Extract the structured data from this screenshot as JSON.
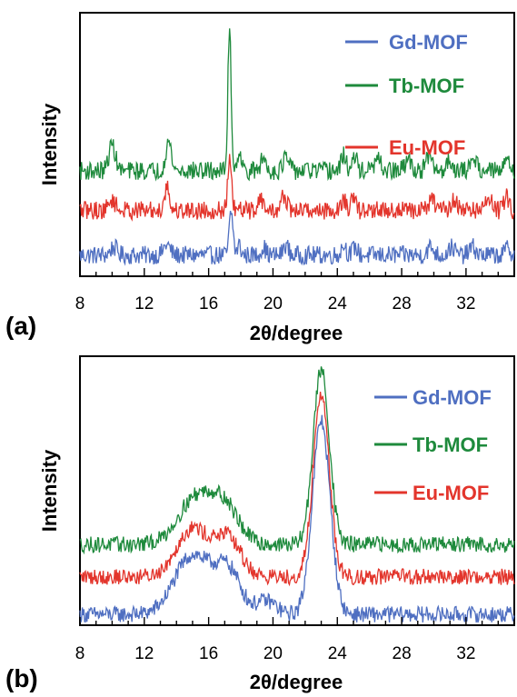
{
  "chart_data": [
    {
      "panel_label": "(a)",
      "type": "line",
      "xlabel": "2θ/degree",
      "ylabel": "Intensity",
      "xlim": [
        8,
        35
      ],
      "x_ticks": [
        8,
        12,
        16,
        20,
        24,
        28,
        32
      ],
      "legend_position": "top-right",
      "series": [
        {
          "name": "Gd-MOF",
          "color": "#4f6fc1",
          "base": 0.08,
          "noise": 0.035,
          "peaks": [
            [
              10.1,
              0.03,
              0.2
            ],
            [
              13.4,
              0.04,
              0.2
            ],
            [
              17.4,
              0.16,
              0.12
            ],
            [
              17.9,
              0.04,
              0.1
            ],
            [
              19.4,
              0.03,
              0.15
            ],
            [
              20.8,
              0.04,
              0.15
            ],
            [
              24.4,
              0.04,
              0.15
            ],
            [
              25.1,
              0.03,
              0.15
            ],
            [
              29.8,
              0.03,
              0.2
            ],
            [
              31.1,
              0.03,
              0.2
            ],
            [
              32.4,
              0.03,
              0.2
            ],
            [
              34.6,
              0.03,
              0.15
            ]
          ]
        },
        {
          "name": "Tb-MOF",
          "color": "#1e8a3c",
          "base": 0.4,
          "noise": 0.035,
          "peaks": [
            [
              10.0,
              0.1,
              0.2
            ],
            [
              13.5,
              0.11,
              0.18
            ],
            [
              17.3,
              0.55,
              0.1
            ],
            [
              17.9,
              0.08,
              0.12
            ],
            [
              19.4,
              0.05,
              0.15
            ],
            [
              20.8,
              0.05,
              0.18
            ],
            [
              24.4,
              0.06,
              0.15
            ],
            [
              25.1,
              0.05,
              0.15
            ],
            [
              26.5,
              0.04,
              0.2
            ],
            [
              28.4,
              0.04,
              0.2
            ],
            [
              29.7,
              0.05,
              0.2
            ],
            [
              31.0,
              0.04,
              0.2
            ],
            [
              32.5,
              0.05,
              0.2
            ],
            [
              34.6,
              0.06,
              0.15
            ]
          ]
        },
        {
          "name": "Eu-MOF",
          "color": "#e3352c",
          "base": 0.25,
          "noise": 0.035,
          "peaks": [
            [
              10.0,
              0.04,
              0.2
            ],
            [
              13.4,
              0.09,
              0.15
            ],
            [
              17.3,
              0.18,
              0.12
            ],
            [
              19.2,
              0.05,
              0.15
            ],
            [
              20.7,
              0.06,
              0.15
            ],
            [
              24.4,
              0.04,
              0.15
            ],
            [
              25.0,
              0.04,
              0.15
            ],
            [
              29.9,
              0.04,
              0.2
            ],
            [
              31.3,
              0.04,
              0.2
            ],
            [
              33.4,
              0.05,
              0.2
            ],
            [
              34.5,
              0.05,
              0.15
            ]
          ]
        }
      ]
    },
    {
      "panel_label": "(b)",
      "type": "line",
      "xlabel": "2θ/degree",
      "ylabel": "Intensity",
      "xlim": [
        8,
        35
      ],
      "x_ticks": [
        8,
        12,
        16,
        20,
        24,
        28,
        32
      ],
      "legend_position": "top-right",
      "series": [
        {
          "name": "Gd-MOF",
          "color": "#4f6fc1",
          "base": 0.04,
          "noise": 0.03,
          "peaks": [
            [
              15.0,
              0.22,
              1.1
            ],
            [
              17.2,
              0.16,
              0.8
            ],
            [
              19.6,
              0.05,
              0.6
            ],
            [
              23.0,
              0.72,
              0.55
            ]
          ]
        },
        {
          "name": "Tb-MOF",
          "color": "#1e8a3c",
          "base": 0.3,
          "noise": 0.03,
          "peaks": [
            [
              15.2,
              0.17,
              1.1
            ],
            [
              17.0,
              0.13,
              0.9
            ],
            [
              23.0,
              0.65,
              0.5
            ]
          ]
        },
        {
          "name": "Eu-MOF",
          "color": "#e3352c",
          "base": 0.18,
          "noise": 0.03,
          "peaks": [
            [
              15.0,
              0.18,
              1.0
            ],
            [
              17.2,
              0.14,
              0.8
            ],
            [
              23.0,
              0.68,
              0.5
            ]
          ]
        }
      ]
    }
  ]
}
